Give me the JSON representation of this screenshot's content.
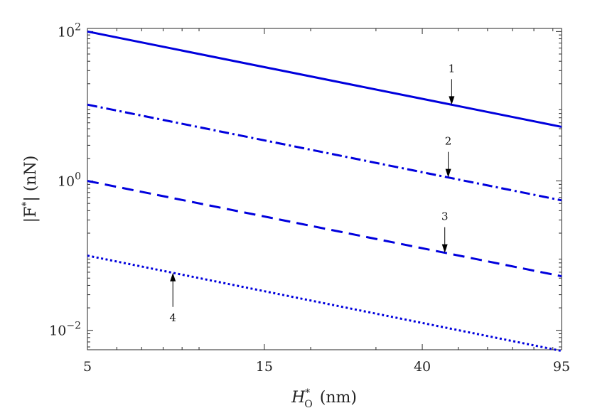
{
  "chart_data": {
    "type": "line",
    "title": "",
    "xlabel": "H*_O (nm)",
    "xlabel_parts": {
      "main": "H",
      "sup": "*",
      "sub": "O",
      "unit": "(nm)"
    },
    "ylabel": "|F*| (nN)",
    "ylabel_parts": {
      "pre": "|F",
      "sup": "*",
      "post": "| (nN)"
    },
    "x_scale": "log",
    "y_scale": "log",
    "xlim": [
      5,
      95
    ],
    "ylim": [
      0.0055,
      110
    ],
    "x_ticks": [
      {
        "value": 5,
        "label": "5"
      },
      {
        "value": 15,
        "label": "15"
      },
      {
        "value": 40,
        "label": "40"
      },
      {
        "value": 95,
        "label": "95"
      }
    ],
    "y_ticks": [
      {
        "value": 0.01,
        "base": "10",
        "exp": "−2"
      },
      {
        "value": 1,
        "base": "10",
        "exp": "0"
      },
      {
        "value": 100,
        "base": "10",
        "exp": "2"
      }
    ],
    "line_color": "#0000dd",
    "series": [
      {
        "style": "solid",
        "x": [
          5,
          95
        ],
        "y": [
          100,
          5.3
        ]
      },
      {
        "style": "dashdot",
        "x": [
          5,
          95
        ],
        "y": [
          10.5,
          0.55
        ]
      },
      {
        "style": "dashed",
        "x": [
          5,
          95
        ],
        "y": [
          1.0,
          0.053
        ]
      },
      {
        "style": "dotted",
        "x": [
          5,
          95
        ],
        "y": [
          0.1,
          0.0053
        ]
      }
    ],
    "annotations": [
      {
        "label": "1",
        "series": 0,
        "x": 48,
        "direction": "down"
      },
      {
        "label": "2",
        "series": 1,
        "x": 47,
        "direction": "down"
      },
      {
        "label": "3",
        "series": 2,
        "x": 46,
        "direction": "down"
      },
      {
        "label": "4",
        "series": 3,
        "x": 8.5,
        "direction": "up"
      }
    ]
  }
}
